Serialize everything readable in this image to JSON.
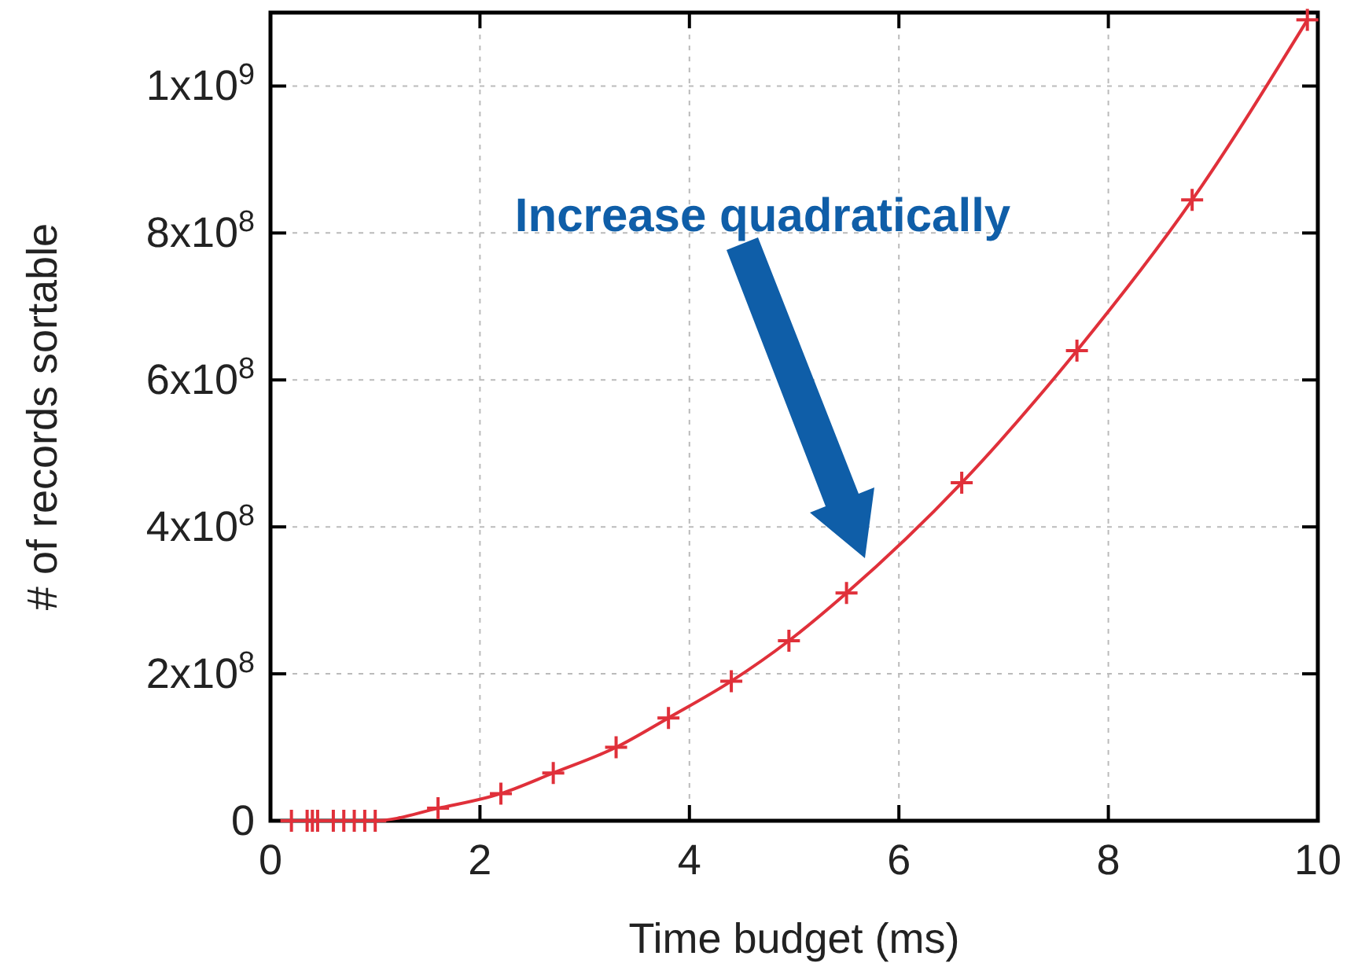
{
  "chart_data": {
    "type": "line",
    "xlabel": "Time budget (ms)",
    "ylabel": "# of records sortable",
    "annotations": [
      "Increase quadratically"
    ],
    "x": [
      0.2,
      0.35,
      0.4,
      0.45,
      0.6,
      0.7,
      0.8,
      0.9,
      1.0,
      1.6,
      2.2,
      2.7,
      3.3,
      3.8,
      4.4,
      4.95,
      5.5,
      6.6,
      7.7,
      8.8,
      9.9
    ],
    "series": [
      {
        "color": "#e0303a",
        "values": [
          0,
          0,
          0,
          0,
          0,
          0,
          0,
          0,
          0,
          17000000,
          37000000,
          65000000,
          100000000,
          140000000,
          190000000,
          245000000,
          310000000,
          460000000,
          640000000,
          845000000,
          1090000000
        ]
      }
    ],
    "xlim": [
      0,
      10
    ],
    "xticks": [
      0,
      2,
      4,
      6,
      8,
      10
    ],
    "ylim": [
      0,
      1100000000
    ],
    "yticks": [
      {
        "value": 0,
        "label": "0"
      },
      {
        "value": 200000000,
        "label": "2x10$^{8}$"
      },
      {
        "value": 400000000,
        "label": "4x10$^{8}$"
      },
      {
        "value": 600000000,
        "label": "6x10$^{8}$"
      },
      {
        "value": 800000000,
        "label": "8x10$^{8}$"
      },
      {
        "value": 1000000000,
        "label": "1x10$^{9}$"
      }
    ],
    "grid": true,
    "marker": "cross",
    "line_style": "solid"
  }
}
